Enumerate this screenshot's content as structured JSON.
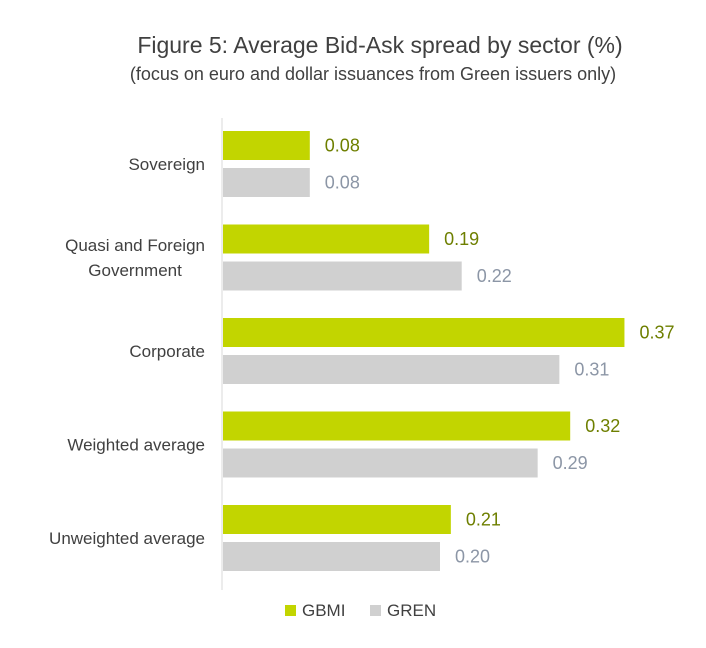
{
  "chart_data": {
    "type": "bar",
    "orientation": "horizontal",
    "title": "Figure 5: Average Bid-Ask spread by sector (%)",
    "subtitle": "(focus on euro and dollar issuances from Green issuers only)",
    "categories": [
      [
        "Sovereign"
      ],
      [
        "Quasi and Foreign",
        "Government"
      ],
      [
        "Corporate"
      ],
      [
        "Weighted average"
      ],
      [
        "Unweighted average"
      ]
    ],
    "series": [
      {
        "name": "GBMI",
        "color": "#c2d500",
        "label_color": "#6e7f00",
        "values": [
          0.08,
          0.19,
          0.37,
          0.32,
          0.21
        ],
        "labels": [
          "0.08",
          "0.19",
          "0.37",
          "0.32",
          "0.21"
        ]
      },
      {
        "name": "GREN",
        "color": "#d0d0d0",
        "label_color": "#8c96a6",
        "values": [
          0.08,
          0.22,
          0.31,
          0.29,
          0.2
        ],
        "labels": [
          "0.08",
          "0.22",
          "0.31",
          "0.29",
          "0.20"
        ]
      }
    ],
    "xlim": [
      0,
      0.4
    ],
    "grid": false,
    "legend": "bottom"
  }
}
